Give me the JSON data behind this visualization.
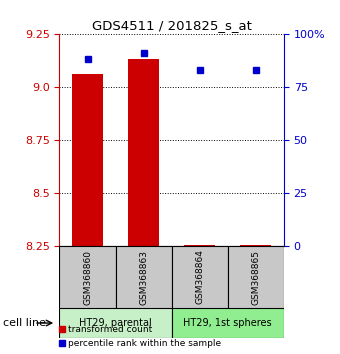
{
  "title": "GDS4511 / 201825_s_at",
  "samples": [
    "GSM368860",
    "GSM368863",
    "GSM368864",
    "GSM368865"
  ],
  "transformed_counts": [
    9.06,
    9.13,
    8.255,
    8.255
  ],
  "percentile_ranks": [
    88,
    91,
    83,
    83
  ],
  "ylim_left": [
    8.25,
    9.25
  ],
  "ylim_right": [
    0,
    100
  ],
  "yticks_left": [
    8.25,
    8.5,
    8.75,
    9.0,
    9.25
  ],
  "yticks_right": [
    0,
    25,
    50,
    75,
    100
  ],
  "ytick_labels_right": [
    "0",
    "25",
    "50",
    "75",
    "100%"
  ],
  "left_color": "#cc0000",
  "right_color": "#0000cc",
  "background_color": "#ffffff",
  "sample_bg_color": "#c8c8c8",
  "cell_line_bg_parental": "#c8f0c8",
  "cell_line_bg_spheres": "#90ee90",
  "cell_line_groups": [
    {
      "indices": [
        0,
        1
      ],
      "label": "HT29, parental",
      "color": "#c8f0c8"
    },
    {
      "indices": [
        2,
        3
      ],
      "label": "HT29, 1st spheres",
      "color": "#90ee90"
    }
  ]
}
